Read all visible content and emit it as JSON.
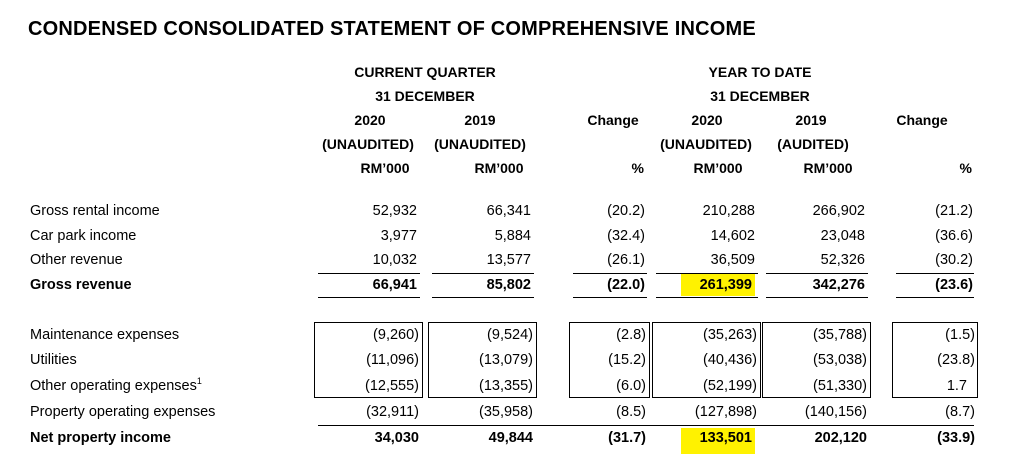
{
  "title": "CONDENSED CONSOLIDATED STATEMENT OF COMPREHENSIVE INCOME",
  "header": {
    "quarter_group": "CURRENT QUARTER",
    "quarter_date": "31 DECEMBER",
    "ytd_group": "YEAR TO DATE",
    "ytd_date": "31 DECEMBER",
    "q_2020_year": "2020",
    "q_2019_year": "2019",
    "ytd_2020_year": "2020",
    "ytd_2019_year": "2019",
    "q_2020_status": "(UNAUDITED)",
    "q_2019_status": "(UNAUDITED)",
    "ytd_2020_status": "(UNAUDITED)",
    "ytd_2019_status": "(AUDITED)",
    "unit": "RM’000",
    "change": "Change",
    "percent": "%"
  },
  "rows": [
    {
      "label": "Gross rental income",
      "q2020": "52,932",
      "q2019": "66,341",
      "qchg": "(20.2)",
      "y2020": "210,288",
      "y2019": "266,902",
      "ychg": "(21.2)"
    },
    {
      "label": "Car park income",
      "q2020": "3,977",
      "q2019": "5,884",
      "qchg": "(32.4)",
      "y2020": "14,602",
      "y2019": "23,048",
      "ychg": "(36.6)"
    },
    {
      "label": "Other revenue",
      "q2020": "10,032",
      "q2019": "13,577",
      "qchg": "(26.1)",
      "y2020": "36,509",
      "y2019": "52,326",
      "ychg": "(30.2)"
    },
    {
      "label": "Gross revenue",
      "q2020": "66,941",
      "q2019": "85,802",
      "qchg": "(22.0)",
      "y2020": "261,399",
      "y2019": "342,276",
      "ychg": "(23.6)"
    },
    {
      "label": "Maintenance expenses",
      "q2020": "(9,260)",
      "q2019": "(9,524)",
      "qchg": "(2.8)",
      "y2020": "(35,263)",
      "y2019": "(35,788)",
      "ychg": "(1.5)"
    },
    {
      "label": "Utilities",
      "q2020": "(11,096)",
      "q2019": "(13,079)",
      "qchg": "(15.2)",
      "y2020": "(40,436)",
      "y2019": "(53,038)",
      "ychg": "(23.8)"
    },
    {
      "label": "Other operating expenses",
      "footnote": "1",
      "q2020": "(12,555)",
      "q2019": "(13,355)",
      "qchg": "(6.0)",
      "y2020": "(52,199)",
      "y2019": "(51,330)",
      "ychg": "1.7"
    },
    {
      "label": "Property operating expenses",
      "q2020": "(32,911)",
      "q2019": "(35,958)",
      "qchg": "(8.5)",
      "y2020": "(127,898)",
      "y2019": "(140,156)",
      "ychg": "(8.7)"
    },
    {
      "label": "Net property income",
      "q2020": "34,030",
      "q2019": "49,844",
      "qchg": "(31.7)",
      "y2020": "133,501",
      "y2019": "202,120",
      "ychg": "(33.9)"
    }
  ],
  "highlight_color": "#fff200"
}
